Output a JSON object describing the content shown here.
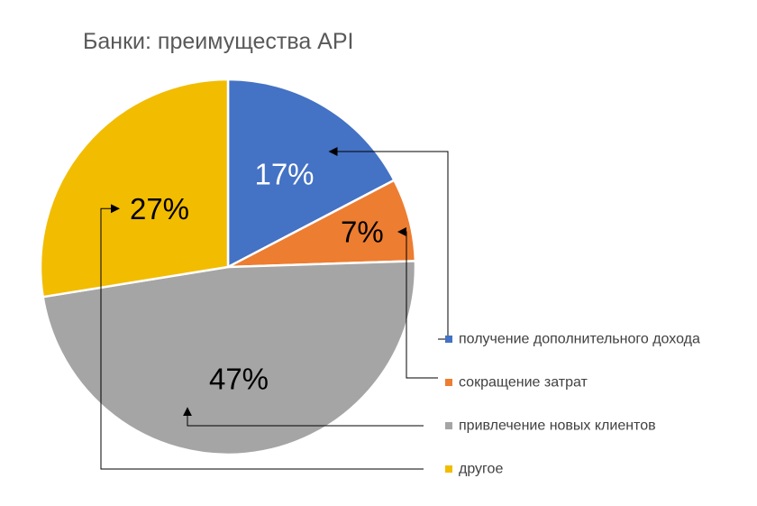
{
  "chart_data": {
    "type": "pie",
    "title": "Банки: преимущества API",
    "categories": [
      "получение дополнительного дохода",
      "сокращение затрат",
      "привлечение новых клиентов",
      "другое"
    ],
    "values": [
      17,
      7,
      47,
      27
    ],
    "data_labels": [
      "17%",
      "7%",
      "47%",
      "27%"
    ],
    "colors": [
      "#4472c4",
      "#ed7d31",
      "#a5a5a5",
      "#f2bc00"
    ],
    "label_colors": [
      "#ffffff",
      "#000000",
      "#000000",
      "#000000"
    ],
    "legend_position": "right",
    "leader_arrows": true
  }
}
